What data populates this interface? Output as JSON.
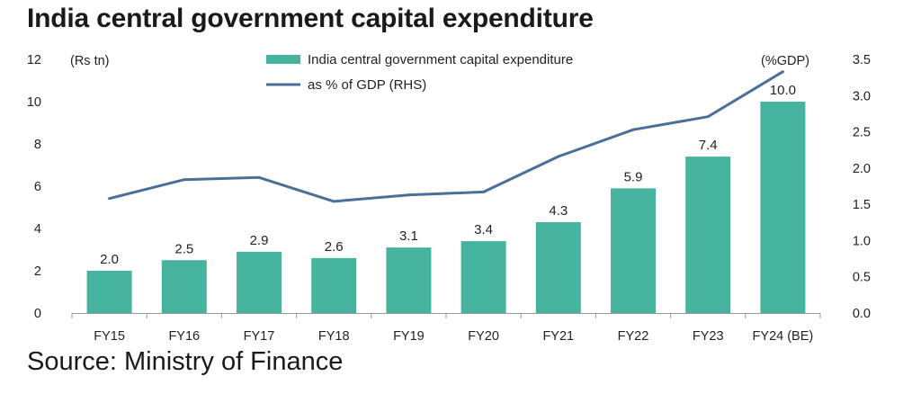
{
  "title": "India central government capital expenditure",
  "source": "Source: Ministry of Finance",
  "chart_data": {
    "type": "bar",
    "categories": [
      "FY15",
      "FY16",
      "FY17",
      "FY18",
      "FY19",
      "FY20",
      "FY21",
      "FY22",
      "FY23",
      "FY24 (BE)"
    ],
    "series": [
      {
        "name": "India central government capital expenditure",
        "type": "bar",
        "axis": "left",
        "color": "#45b39d",
        "values": [
          2.0,
          2.5,
          2.9,
          2.6,
          3.1,
          3.4,
          4.3,
          5.9,
          7.4,
          10.0
        ],
        "labels": [
          "2.0",
          "2.5",
          "2.9",
          "2.6",
          "3.1",
          "3.4",
          "4.3",
          "5.9",
          "7.4",
          "10.0"
        ]
      },
      {
        "name": "as % of GDP (RHS)",
        "type": "line",
        "axis": "right",
        "color": "#4a6f99",
        "values": [
          1.58,
          1.84,
          1.87,
          1.54,
          1.63,
          1.67,
          2.16,
          2.53,
          2.71,
          3.33
        ]
      }
    ],
    "y_left": {
      "unit": "(Rs tn)",
      "ylim": [
        0,
        12
      ],
      "ticks": [
        "0",
        "2",
        "4",
        "6",
        "8",
        "10",
        "12"
      ]
    },
    "y_right": {
      "unit": "(%GDP)",
      "ylim": [
        0,
        3.5
      ],
      "ticks": [
        "0.0",
        "0.5",
        "1.0",
        "1.5",
        "2.0",
        "2.5",
        "3.0",
        "3.5"
      ]
    },
    "grid": false,
    "legend": "top-center"
  }
}
